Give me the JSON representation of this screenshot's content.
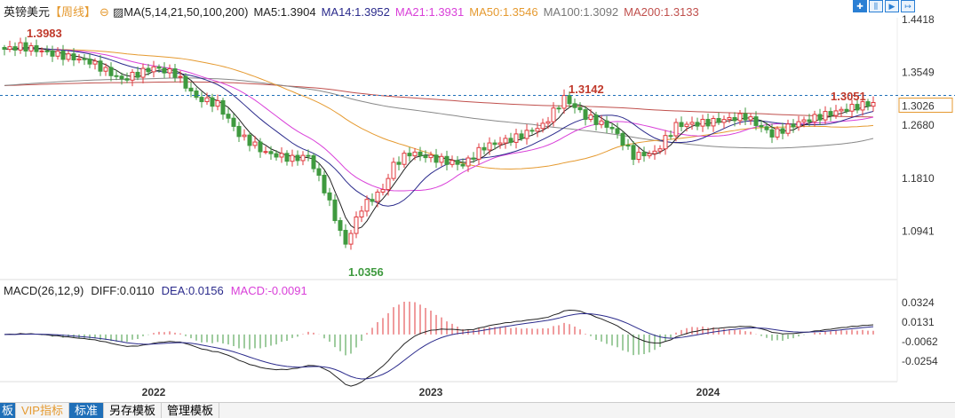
{
  "header": {
    "symbol": "英镑美元",
    "period": "【周线】",
    "ma_label": "MA(5,14,21,50,100,200)",
    "ma5": "MA5:1.3904",
    "ma14": "MA14:1.3952",
    "ma21": "MA21:1.3931",
    "ma50": "MA50:1.3546",
    "ma100": "MA100:1.3092",
    "ma200": "MA200:1.3133"
  },
  "macd_header": {
    "label": "MACD(26,12,9)",
    "diff": "DIFF:0.0110",
    "dea": "DEA:0.0156",
    "macd": "MACD:-0.0091"
  },
  "tabs": [
    "板",
    "VIP指标",
    "标准",
    "另存模板",
    "管理模板"
  ],
  "colors": {
    "up": "#e0393e",
    "down": "#3f9a3f",
    "ma5": "#222222",
    "ma14": "#2b2b8c",
    "ma21": "#d940d9",
    "ma50": "#e59a30",
    "ma100": "#888888",
    "ma200": "#c0504d",
    "current": "#1f6fb8"
  },
  "chart_data": {
    "type": "candlestick",
    "title": "英镑美元 周线",
    "price_ticks": [
      "1.4418",
      "1.3549",
      "1.2680",
      "1.1810",
      "1.0941"
    ],
    "price_range": [
      1.02,
      1.46
    ],
    "current_price": "1.3026",
    "annotations": {
      "high_2021": "1.3983",
      "low_2022": "1.0356",
      "high_2023": "1.3142",
      "high_2024": "1.3051"
    },
    "x_labels": [
      {
        "week": 28,
        "label": "2022"
      },
      {
        "week": 80,
        "label": "2023"
      },
      {
        "week": 132,
        "label": "2024"
      }
    ],
    "weeks": 164,
    "close_keypoints": [
      [
        0,
        1.39
      ],
      [
        3,
        1.395
      ],
      [
        8,
        1.385
      ],
      [
        16,
        1.37
      ],
      [
        22,
        1.34
      ],
      [
        28,
        1.36
      ],
      [
        32,
        1.35
      ],
      [
        36,
        1.31
      ],
      [
        40,
        1.3
      ],
      [
        44,
        1.25
      ],
      [
        49,
        1.22
      ],
      [
        54,
        1.21
      ],
      [
        57,
        1.215
      ],
      [
        60,
        1.16
      ],
      [
        63,
        1.09
      ],
      [
        64,
        1.07
      ],
      [
        67,
        1.13
      ],
      [
        71,
        1.16
      ],
      [
        73,
        1.2
      ],
      [
        76,
        1.22
      ],
      [
        81,
        1.21
      ],
      [
        86,
        1.2
      ],
      [
        90,
        1.23
      ],
      [
        96,
        1.245
      ],
      [
        101,
        1.265
      ],
      [
        105,
        1.31
      ],
      [
        109,
        1.28
      ],
      [
        114,
        1.26
      ],
      [
        118,
        1.215
      ],
      [
        122,
        1.22
      ],
      [
        126,
        1.265
      ],
      [
        132,
        1.27
      ],
      [
        139,
        1.28
      ],
      [
        144,
        1.25
      ],
      [
        149,
        1.27
      ],
      [
        157,
        1.29
      ],
      [
        163,
        1.3026
      ]
    ],
    "macd_ticks": [
      "0.0324",
      "0.0131",
      "-0.0062",
      "-0.0254"
    ],
    "macd_range": [
      -0.033,
      0.0324
    ]
  }
}
